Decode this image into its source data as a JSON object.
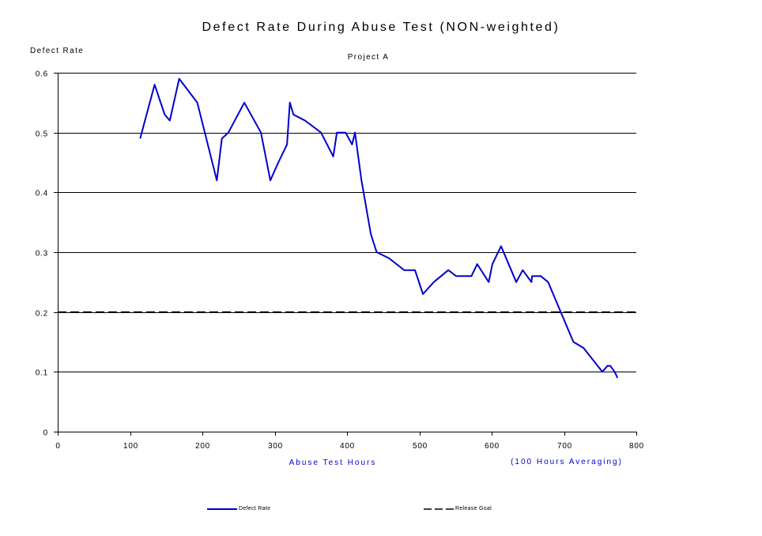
{
  "chart_data": {
    "type": "line",
    "title": "Defect Rate During Abuse Test (NON-weighted)",
    "subtitle": "Project A",
    "ylabel": "Defect Rate",
    "xlabel": "Abuse Test Hours",
    "note": "(100 Hours Averaging)",
    "xlim": [
      0,
      800
    ],
    "ylim": [
      0,
      0.6
    ],
    "xticks": [
      0,
      100,
      200,
      300,
      400,
      500,
      600,
      700,
      800
    ],
    "yticks": [
      0,
      0.1,
      0.2,
      0.3,
      0.4,
      0.5,
      0.6
    ],
    "xtick_labels": [
      "0",
      "100",
      "200",
      "300",
      "400",
      "500",
      "600",
      "700",
      "800"
    ],
    "ytick_labels": [
      "0",
      "0.1",
      "0.2",
      "0.3",
      "0.4",
      "0.5",
      "0.6"
    ],
    "grid": "horizontal",
    "legend_position": "bottom",
    "series": [
      {
        "name": "Defect Rate",
        "color": "#0000cc",
        "style": "solid",
        "points": [
          [
            114,
            0.49
          ],
          [
            134,
            0.58
          ],
          [
            148,
            0.53
          ],
          [
            155,
            0.52
          ],
          [
            168,
            0.59
          ],
          [
            193,
            0.55
          ],
          [
            220,
            0.42
          ],
          [
            227,
            0.49
          ],
          [
            236,
            0.5
          ],
          [
            258,
            0.55
          ],
          [
            281,
            0.5
          ],
          [
            294,
            0.42
          ],
          [
            305,
            0.45
          ],
          [
            317,
            0.48
          ],
          [
            321,
            0.55
          ],
          [
            326,
            0.53
          ],
          [
            342,
            0.52
          ],
          [
            364,
            0.5
          ],
          [
            381,
            0.46
          ],
          [
            386,
            0.5
          ],
          [
            398,
            0.5
          ],
          [
            407,
            0.48
          ],
          [
            411,
            0.5
          ],
          [
            420,
            0.42
          ],
          [
            433,
            0.33
          ],
          [
            441,
            0.3
          ],
          [
            458,
            0.29
          ],
          [
            479,
            0.27
          ],
          [
            494,
            0.27
          ],
          [
            505,
            0.23
          ],
          [
            520,
            0.25
          ],
          [
            540,
            0.27
          ],
          [
            551,
            0.26
          ],
          [
            572,
            0.26
          ],
          [
            580,
            0.28
          ],
          [
            596,
            0.25
          ],
          [
            601,
            0.28
          ],
          [
            613,
            0.31
          ],
          [
            634,
            0.25
          ],
          [
            643,
            0.27
          ],
          [
            655,
            0.25
          ],
          [
            656,
            0.26
          ],
          [
            668,
            0.26
          ],
          [
            678,
            0.25
          ],
          [
            713,
            0.15
          ],
          [
            727,
            0.14
          ],
          [
            753,
            0.1
          ],
          [
            760,
            0.11
          ],
          [
            764,
            0.11
          ],
          [
            770,
            0.1
          ],
          [
            774,
            0.09
          ]
        ]
      },
      {
        "name": "Release Goal",
        "color": "#000000",
        "style": "dashed",
        "points": [
          [
            0,
            0.2
          ],
          [
            800,
            0.2
          ]
        ]
      }
    ]
  }
}
